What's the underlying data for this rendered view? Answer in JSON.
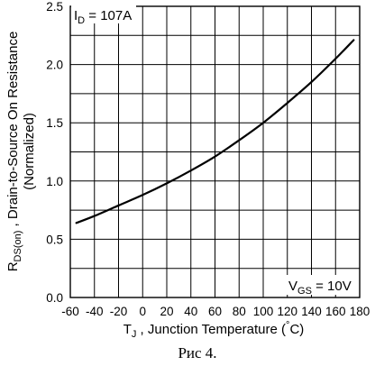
{
  "chart_data": {
    "type": "line",
    "xlabel": {
      "symbol": "T",
      "subscript": "J",
      "text": " , Junction Temperature  (",
      "unit_degree": "°",
      "unit": "C)"
    },
    "ylabel": {
      "line1_symbol": "R",
      "line1_subscript": "DS(on)",
      "line1_text": " , Drain-to-Source On Resistance",
      "line2": "(Normalized)"
    },
    "xlim": [
      -60,
      180
    ],
    "ylim": [
      0,
      2.5
    ],
    "x_ticks": [
      -60,
      -40,
      -20,
      0,
      20,
      40,
      60,
      80,
      100,
      120,
      140,
      160,
      180
    ],
    "x_tick_labels": [
      "-60",
      "-40",
      "-20",
      "0",
      "20",
      "40",
      "60",
      "80",
      "100",
      "120",
      "140",
      "160",
      "180"
    ],
    "y_ticks": [
      0,
      0.5,
      1.0,
      1.5,
      2.0,
      2.5
    ],
    "y_tick_labels": [
      "0.0",
      "0.5",
      "1.0",
      "1.5",
      "2.0",
      "2.5"
    ],
    "grid": true,
    "series": [
      {
        "x": [
          -55,
          -40,
          -20,
          0,
          20,
          40,
          60,
          80,
          100,
          120,
          140,
          160,
          175
        ],
        "y": [
          0.64,
          0.7,
          0.79,
          0.88,
          0.98,
          1.09,
          1.21,
          1.35,
          1.5,
          1.67,
          1.85,
          2.05,
          2.21
        ]
      }
    ],
    "annotations": {
      "id": {
        "prefix": "I",
        "subscript": "D",
        "text": " = 107A"
      },
      "vgs": {
        "prefix": "V",
        "subscript": "GS",
        "text": " = 10V"
      }
    }
  },
  "caption": "Рис 4."
}
